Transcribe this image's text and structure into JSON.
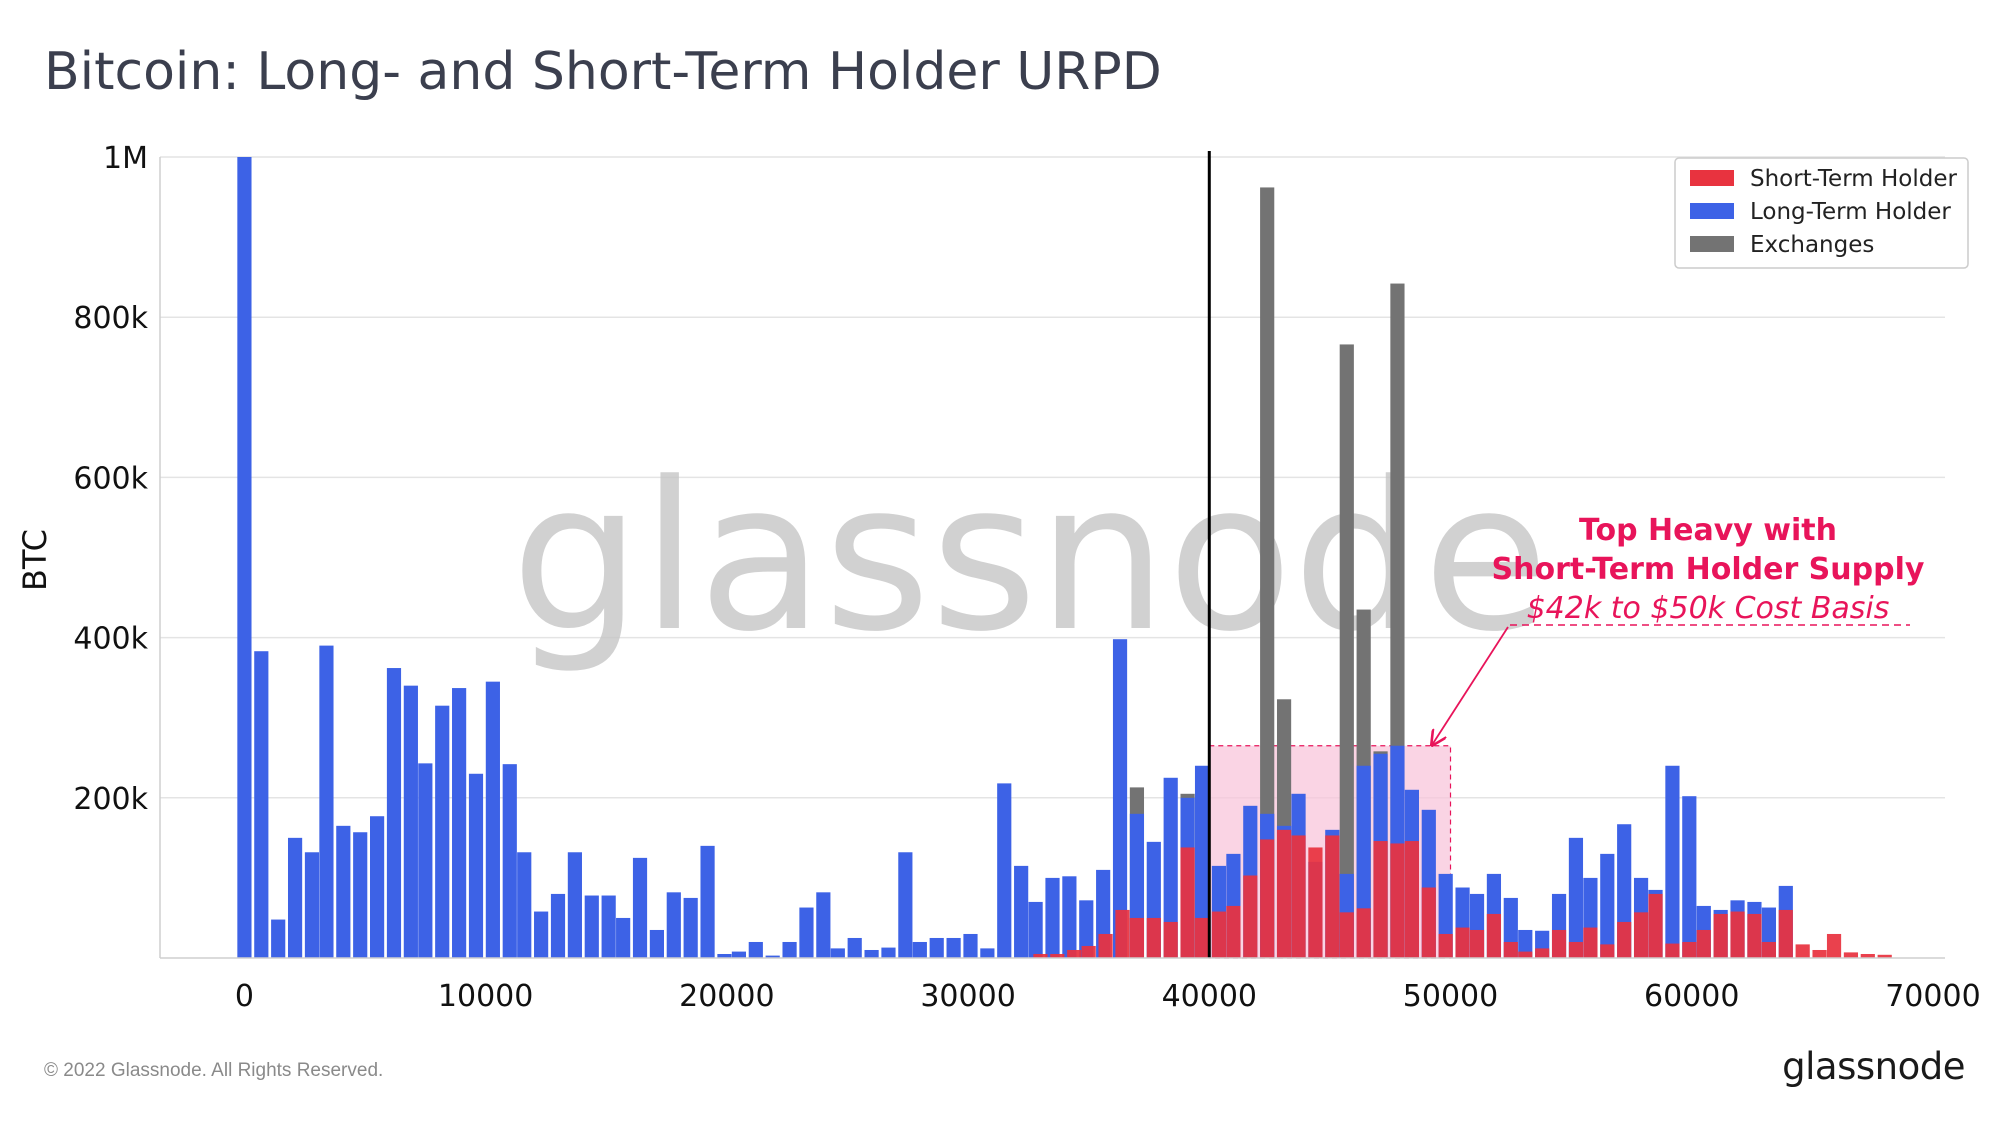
{
  "title": "Bitcoin: Long- and Short-Term Holder URPD",
  "footer": {
    "copyright": "© 2022 Glassnode. All Rights Reserved.",
    "brand": "glassnode"
  },
  "watermark": "glassnode",
  "chart_data": {
    "type": "bar",
    "ylabel": "BTC",
    "xlabel": "",
    "xlim": [
      -3500,
      70500
    ],
    "ylim": [
      0,
      1000000
    ],
    "x_ticks": [
      0,
      10000,
      20000,
      30000,
      40000,
      50000,
      60000,
      70000
    ],
    "y_ticks": [
      200000,
      400000,
      600000,
      800000,
      1000000
    ],
    "y_tick_labels": [
      "200k",
      "400k",
      "600k",
      "800k",
      "1M"
    ],
    "grid": true,
    "legend_position": "top-right",
    "bin_width": 700,
    "reference_line_x": 40000,
    "colors": {
      "sth": "#e8333f",
      "lth": "#3d62e6",
      "exchanges": "#737373",
      "annotation": "#e8145a",
      "highlight_fill": "#f8c3d9",
      "reference_line": "#000000"
    },
    "series": [
      {
        "name": "Short-Term Holder",
        "key": "sth",
        "x": [
          33000,
          33700,
          34400,
          35000,
          35700,
          36400,
          37000,
          37700,
          38400,
          39100,
          39700,
          40400,
          41000,
          41700,
          42400,
          43100,
          43700,
          44400,
          45100,
          45700,
          46400,
          47100,
          47800,
          48400,
          49100,
          49800,
          50500,
          51100,
          51800,
          52500,
          53100,
          53800,
          54500,
          55200,
          55800,
          56500,
          57200,
          57900,
          58500,
          59200,
          59900,
          60500,
          61200,
          61900,
          62600,
          63200,
          63900,
          64600,
          65300,
          65900,
          66600,
          67300,
          68000
        ],
        "values": [
          5000,
          5000,
          10000,
          15000,
          30000,
          60000,
          50000,
          50000,
          45000,
          138000,
          50000,
          58000,
          65000,
          103000,
          148000,
          160000,
          153000,
          138000,
          153000,
          57000,
          62000,
          146000,
          143000,
          146000,
          88000,
          30000,
          38000,
          35000,
          55000,
          20000,
          8000,
          12000,
          35000,
          20000,
          38000,
          17000,
          45000,
          57000,
          80000,
          18000,
          20000,
          35000,
          55000,
          58000,
          55000,
          20000,
          60000,
          17000,
          10000,
          30000,
          7000,
          5000,
          4000
        ]
      },
      {
        "name": "Long-Term Holder",
        "key": "lth",
        "x": [
          0,
          700,
          1400,
          2100,
          2800,
          3400,
          4100,
          4800,
          5500,
          6200,
          6900,
          7500,
          8200,
          8900,
          9600,
          10300,
          11000,
          11600,
          12300,
          13000,
          13700,
          14400,
          15100,
          15700,
          16400,
          17100,
          17800,
          18500,
          19200,
          19900,
          20500,
          21200,
          21900,
          22600,
          23300,
          24000,
          24600,
          25300,
          26000,
          26700,
          27400,
          28000,
          28700,
          29400,
          30100,
          30800,
          31500,
          32200,
          32800,
          33500,
          34200,
          34900,
          35600,
          36300,
          37000,
          37700,
          38400,
          39100,
          39700,
          40400,
          41000,
          41700,
          42400,
          43100,
          43700,
          44400,
          45100,
          45700,
          46400,
          47100,
          47800,
          48400,
          49100,
          49800,
          50500,
          51100,
          51800,
          52500,
          53100,
          53800,
          54500,
          55200,
          55800,
          56500,
          57200,
          57900,
          58500,
          59200,
          59900,
          60500,
          61200,
          61900,
          62600,
          63200,
          63900
        ],
        "values": [
          1010000,
          383000,
          48000,
          150000,
          132000,
          390000,
          165000,
          157000,
          177000,
          362000,
          340000,
          243000,
          315000,
          337000,
          230000,
          345000,
          242000,
          132000,
          58000,
          80000,
          132000,
          78000,
          78000,
          50000,
          125000,
          35000,
          82000,
          75000,
          140000,
          5000,
          8000,
          20000,
          3000,
          20000,
          63000,
          82000,
          12000,
          25000,
          10000,
          13000,
          132000,
          20000,
          25000,
          25000,
          30000,
          12000,
          218000,
          115000,
          70000,
          100000,
          102000,
          72000,
          110000,
          398000,
          180000,
          145000,
          225000,
          200000,
          240000,
          115000,
          130000,
          190000,
          180000,
          165000,
          205000,
          120000,
          160000,
          105000,
          240000,
          255000,
          265000,
          210000,
          185000,
          105000,
          88000,
          80000,
          105000,
          75000,
          35000,
          34000,
          80000,
          150000,
          100000,
          130000,
          167000,
          100000,
          85000,
          240000,
          202000,
          65000,
          60000,
          72000,
          70000,
          63000,
          90000
        ]
      },
      {
        "name": "Exchanges",
        "key": "exchanges",
        "x": [
          37000,
          39100,
          42400,
          43100,
          45700,
          46400,
          47100,
          47800
        ],
        "values": [
          213000,
          205000,
          962000,
          323000,
          766000,
          435000,
          258000,
          842000
        ]
      }
    ],
    "highlight_region": {
      "x": [
        40000,
        50000
      ],
      "y": [
        0,
        265000
      ]
    },
    "annotation": {
      "line1": "Top Heavy with",
      "line2": "Short-Term Holder Supply",
      "line3": "$42k to $50k Cost Basis"
    }
  }
}
